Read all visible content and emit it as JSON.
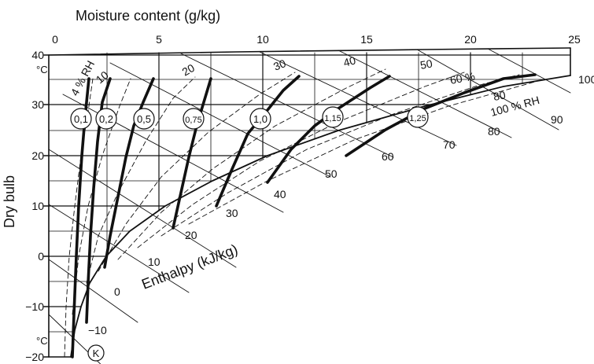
{
  "title": "Moisture content (g/kg)",
  "y_axis_label": "Dry bulb",
  "y_unit_top": "°C",
  "y_unit_bottom": "°C",
  "enthalpy_label": "Enthalpy (kJ/kg)",
  "point_k": "K",
  "moisture_ticks": [
    "0",
    "5",
    "10",
    "15",
    "20",
    "25"
  ],
  "temp_ticks": [
    "40",
    "30",
    "20",
    "10",
    "0",
    "−10",
    "−20"
  ],
  "rh_labels": [
    "4 % RH",
    "10",
    "20",
    "30",
    "40",
    "50",
    "60 %",
    "80",
    "100 % RH"
  ],
  "enthalpy_labels": [
    "−10",
    "0",
    "10",
    "20",
    "30",
    "40",
    "50",
    "60",
    "70",
    "80",
    "90",
    "100"
  ],
  "ratio_labels": [
    "0,1",
    "0,2",
    "0,5",
    "0,75",
    "1,0",
    "1,15",
    "1,25"
  ],
  "colors": {
    "line": "#111111",
    "grid": "#222222",
    "background": "#ffffff"
  }
}
